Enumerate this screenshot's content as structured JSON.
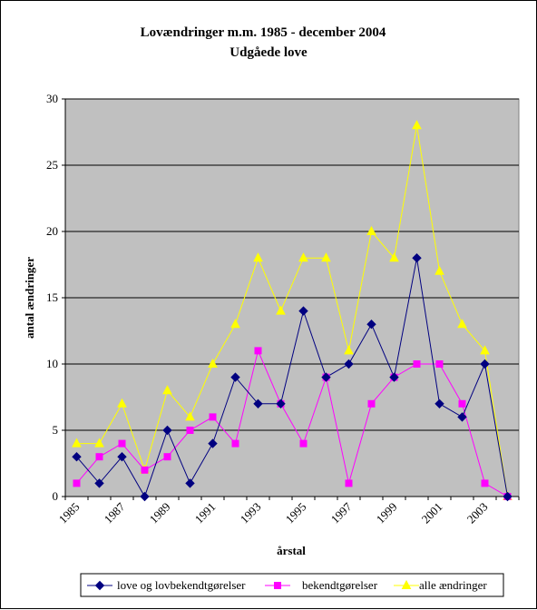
{
  "chart_data": {
    "type": "line",
    "title": "Lovændringer m.m. 1985 - december 2004",
    "subtitle": "Udgåede love",
    "xlabel": "årstal",
    "ylabel": "antal ændringer",
    "x": [
      1985,
      1986,
      1987,
      1988,
      1989,
      1990,
      1991,
      1992,
      1993,
      1994,
      1995,
      1996,
      1997,
      1998,
      1999,
      2000,
      2001,
      2002,
      2003,
      2004
    ],
    "x_tick_labels": [
      "1985",
      "1987",
      "1989",
      "1991",
      "1993",
      "1995",
      "1997",
      "1999",
      "2001",
      "2003"
    ],
    "ylim": [
      0,
      30
    ],
    "y_ticks": [
      0,
      5,
      10,
      15,
      20,
      25,
      30
    ],
    "grid": true,
    "legend_position": "bottom",
    "series": [
      {
        "name": "love og lovbekendtgørelser",
        "color": "#000080",
        "marker": "diamond",
        "values": [
          3,
          1,
          3,
          0,
          5,
          1,
          4,
          9,
          7,
          7,
          14,
          9,
          10,
          13,
          9,
          18,
          7,
          6,
          10,
          0
        ]
      },
      {
        "name": "bekendtgørelser",
        "color": "#ff00ff",
        "marker": "square",
        "values": [
          1,
          3,
          4,
          2,
          3,
          5,
          6,
          4,
          11,
          7,
          4,
          9,
          1,
          7,
          9,
          10,
          10,
          7,
          1,
          0
        ]
      },
      {
        "name": "alle ændringer",
        "color": "#ffff00",
        "marker": "triangle",
        "values": [
          4,
          4,
          7,
          2,
          8,
          6,
          10,
          13,
          18,
          14,
          18,
          18,
          11,
          20,
          18,
          28,
          17,
          13,
          11,
          0
        ]
      }
    ],
    "plot_background": "#c0c0c0"
  }
}
